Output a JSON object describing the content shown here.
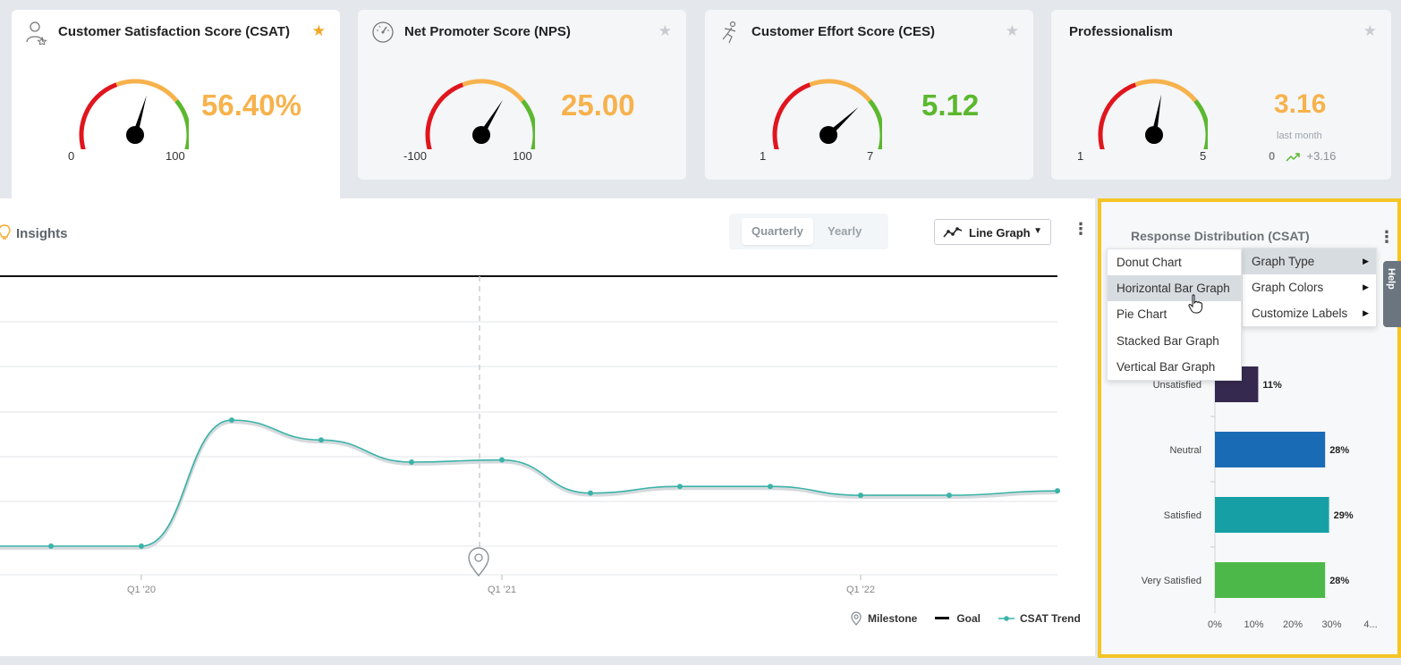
{
  "cards": [
    {
      "title": "Customer Satisfaction Score (CSAT)",
      "icon": "agent-person-icon",
      "value": "56.40%",
      "min": "0",
      "max": "100",
      "color": "#f7b24c",
      "needle": 0.564,
      "starred": true
    },
    {
      "title": "Net Promoter Score (NPS)",
      "icon": "speedometer-icon",
      "value": "25.00",
      "min": "-100",
      "max": "100",
      "color": "#f7b24c",
      "needle": 0.625,
      "starred": false
    },
    {
      "title": "Customer Effort Score (CES)",
      "icon": "running-person-icon",
      "value": "5.12",
      "min": "1",
      "max": "7",
      "color": "#5cb82e",
      "needle": 0.687,
      "starred": false
    },
    {
      "title": "Professionalism",
      "icon": "",
      "value": "3.16",
      "min": "1",
      "max": "5",
      "color": "#f7b24c",
      "needle": 0.54,
      "starred": false,
      "last_month_label": "last month",
      "last_month_value": "0",
      "change": "+3.16"
    }
  ],
  "colors": {
    "gauge_red": "#e0161e",
    "gauge_orange": "#f7b24c",
    "gauge_green": "#5cb82e",
    "trend": "#3bb3a8",
    "highlight": "#f5c526"
  },
  "insights": {
    "title": "Insights",
    "periods": [
      "Quarterly",
      "Yearly"
    ],
    "selected_period": "Quarterly",
    "graph_select_label": "Line Graph",
    "legend": {
      "milestone": "Milestone",
      "goal": "Goal",
      "trend": "CSAT Trend"
    }
  },
  "chart_data": [
    {
      "type": "line",
      "x_tick_labels": [
        "Q1 '20",
        "Q1 '21",
        "Q1 '22"
      ],
      "series": [
        {
          "name": "CSAT Trend",
          "values": [
            0,
            0,
            0.57,
            0.48,
            0.38,
            0.39,
            0.24,
            0.27,
            0.27,
            0.23,
            0.23,
            0.25
          ]
        },
        {
          "name": "Goal",
          "values": [
            1,
            1,
            1,
            1,
            1,
            1,
            1,
            1,
            1,
            1,
            1,
            1
          ]
        }
      ],
      "milestone_label": "Milestone"
    },
    {
      "type": "bar",
      "orientation": "horizontal",
      "title": "Response Distribution (CSAT)",
      "categories": [
        "Unsatisfied",
        "Neutral",
        "Satisfied",
        "Very Satisfied"
      ],
      "values": [
        11,
        28,
        29,
        28
      ],
      "value_labels": [
        "11%",
        "28%",
        "29%",
        "28%"
      ],
      "bar_colors": [
        "#36294f",
        "#1a6bb5",
        "#16a0a6",
        "#4cb84a"
      ],
      "x_tick_labels": [
        "0%",
        "10%",
        "20%",
        "30%",
        "4..."
      ],
      "xlim": [
        0,
        40
      ]
    }
  ],
  "distribution": {
    "title": "Response Distribution (CSAT)"
  },
  "help_label": "Help",
  "graph_menu": {
    "items": [
      "Graph Type",
      "Graph Colors",
      "Customize Labels"
    ],
    "highlighted": "Graph Type"
  },
  "graph_type_menu": {
    "items": [
      "Donut Chart",
      "Horizontal Bar Graph",
      "Pie Chart",
      "Stacked Bar Graph",
      "Vertical Bar Graph"
    ],
    "highlighted": "Horizontal Bar Graph"
  }
}
